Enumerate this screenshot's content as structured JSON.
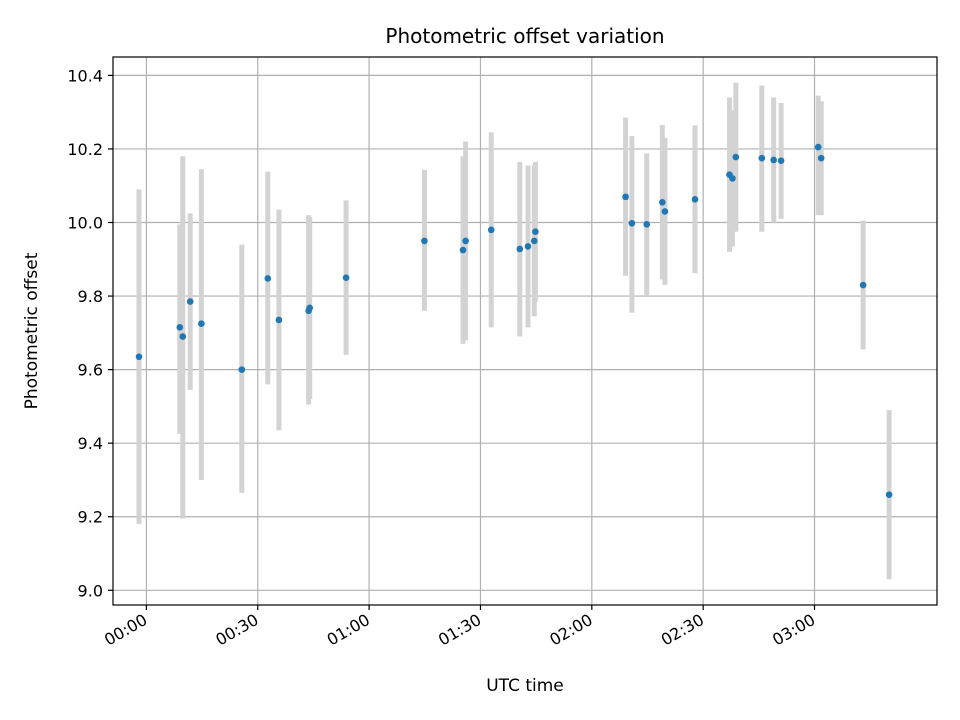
{
  "chart_data": {
    "type": "scatter",
    "title": "Photometric offset variation",
    "xlabel": "UTC time",
    "ylabel": "Photometric offset",
    "x_unit": "UTC time (HH:MM)",
    "xlim": [
      "23:51:00",
      "03:33:00"
    ],
    "ylim": [
      8.96,
      10.45
    ],
    "x_ticks": [
      "00:00",
      "00:30",
      "01:00",
      "01:30",
      "02:00",
      "02:30",
      "03:00"
    ],
    "y_ticks": [
      "9.0",
      "9.2",
      "9.4",
      "9.6",
      "9.8",
      "10.0",
      "10.2",
      "10.4"
    ],
    "grid": true,
    "colors": {
      "points": "#1f77b4",
      "errorbars": "#d3d3d3",
      "grid": "#b0b0b0"
    },
    "points": [
      {
        "x": "23:58:00",
        "y": 9.635,
        "ylo": 9.18,
        "yhi": 10.09
      },
      {
        "x": "00:09:00",
        "y": 9.715,
        "ylo": 9.425,
        "yhi": 9.995
      },
      {
        "x": "00:09:48",
        "y": 9.69,
        "ylo": 9.195,
        "yhi": 10.18
      },
      {
        "x": "00:11:48",
        "y": 9.785,
        "ylo": 9.545,
        "yhi": 10.025
      },
      {
        "x": "00:14:48",
        "y": 9.725,
        "ylo": 9.3,
        "yhi": 10.145
      },
      {
        "x": "00:25:42",
        "y": 9.6,
        "ylo": 9.265,
        "yhi": 9.94
      },
      {
        "x": "00:32:42",
        "y": 9.848,
        "ylo": 9.56,
        "yhi": 10.138
      },
      {
        "x": "00:35:42",
        "y": 9.735,
        "ylo": 9.435,
        "yhi": 10.035
      },
      {
        "x": "00:43:42",
        "y": 9.76,
        "ylo": 9.505,
        "yhi": 10.02
      },
      {
        "x": "00:44:00",
        "y": 9.768,
        "ylo": 9.52,
        "yhi": 10.015
      },
      {
        "x": "00:53:48",
        "y": 9.85,
        "ylo": 9.64,
        "yhi": 10.06
      },
      {
        "x": "01:14:54",
        "y": 9.95,
        "ylo": 9.76,
        "yhi": 10.143
      },
      {
        "x": "01:25:18",
        "y": 9.925,
        "ylo": 9.67,
        "yhi": 10.18
      },
      {
        "x": "01:26:00",
        "y": 9.95,
        "ylo": 9.68,
        "yhi": 10.22
      },
      {
        "x": "01:32:54",
        "y": 9.98,
        "ylo": 9.715,
        "yhi": 10.245
      },
      {
        "x": "01:40:36",
        "y": 9.928,
        "ylo": 9.69,
        "yhi": 10.165
      },
      {
        "x": "01:42:48",
        "y": 9.935,
        "ylo": 9.715,
        "yhi": 10.155
      },
      {
        "x": "01:44:30",
        "y": 9.95,
        "ylo": 9.745,
        "yhi": 10.155
      },
      {
        "x": "01:44:48",
        "y": 9.975,
        "ylo": 9.785,
        "yhi": 10.165
      },
      {
        "x": "02:09:06",
        "y": 10.07,
        "ylo": 9.855,
        "yhi": 10.285
      },
      {
        "x": "02:10:48",
        "y": 9.998,
        "ylo": 9.755,
        "yhi": 10.235
      },
      {
        "x": "02:14:48",
        "y": 9.995,
        "ylo": 9.8,
        "yhi": 10.188
      },
      {
        "x": "02:19:00",
        "y": 10.055,
        "ylo": 9.845,
        "yhi": 10.265
      },
      {
        "x": "02:19:42",
        "y": 10.03,
        "ylo": 9.83,
        "yhi": 10.23
      },
      {
        "x": "02:27:48",
        "y": 10.063,
        "ylo": 9.862,
        "yhi": 10.264
      },
      {
        "x": "02:37:06",
        "y": 10.13,
        "ylo": 9.92,
        "yhi": 10.34
      },
      {
        "x": "02:37:54",
        "y": 10.12,
        "ylo": 9.935,
        "yhi": 10.305
      },
      {
        "x": "02:38:48",
        "y": 10.178,
        "ylo": 9.975,
        "yhi": 10.38
      },
      {
        "x": "02:45:48",
        "y": 10.175,
        "ylo": 9.975,
        "yhi": 10.372
      },
      {
        "x": "02:49:00",
        "y": 10.17,
        "ylo": 10.0,
        "yhi": 10.34
      },
      {
        "x": "02:51:00",
        "y": 10.168,
        "ylo": 10.01,
        "yhi": 10.325
      },
      {
        "x": "03:01:00",
        "y": 10.205,
        "ylo": 10.02,
        "yhi": 10.345
      },
      {
        "x": "03:01:48",
        "y": 10.175,
        "ylo": 10.02,
        "yhi": 10.33
      },
      {
        "x": "03:13:06",
        "y": 9.83,
        "ylo": 9.655,
        "yhi": 10.005
      },
      {
        "x": "03:20:06",
        "y": 9.26,
        "ylo": 9.03,
        "yhi": 9.49
      }
    ]
  }
}
